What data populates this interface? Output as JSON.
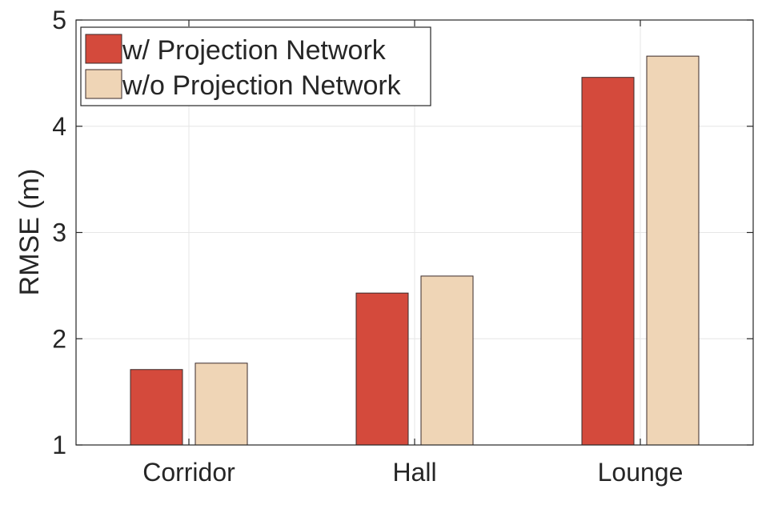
{
  "chart_data": {
    "type": "bar",
    "title": "",
    "xlabel": "",
    "ylabel": "RMSE (m)",
    "categories": [
      "Corridor",
      "Hall",
      "Lounge"
    ],
    "series": [
      {
        "name": "w/ Projection Network",
        "values": [
          1.71,
          2.43,
          4.46
        ],
        "color": "#d44a3c"
      },
      {
        "name": "w/o Projection Network",
        "values": [
          1.77,
          2.59,
          4.66
        ],
        "color": "#efd5b6"
      }
    ],
    "ylim": [
      1,
      5
    ],
    "yticks": [
      1,
      2,
      3,
      4,
      5
    ],
    "grid": true,
    "legend_position": "top-left"
  },
  "colors": {
    "axis": "#262626",
    "grid": "#e6e6e6",
    "bar_edge": "#3a2a2a"
  }
}
